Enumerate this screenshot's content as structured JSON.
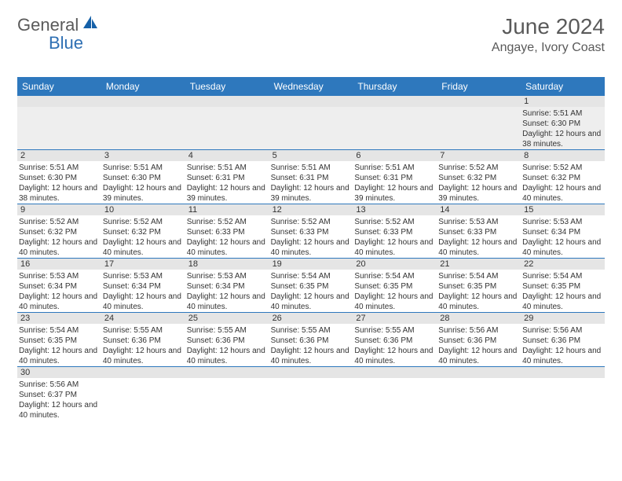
{
  "logo": {
    "part1": "General",
    "part2": "Blue"
  },
  "title": "June 2024",
  "location": "Angaye, Ivory Coast",
  "colors": {
    "header_bg": "#2e78bd",
    "header_text": "#ffffff",
    "daynum_bg": "#e5e5e5",
    "border": "#2e78bd",
    "text": "#333333",
    "logo_gray": "#5a5a5a",
    "logo_blue": "#2e6fb3"
  },
  "dayNames": [
    "Sunday",
    "Monday",
    "Tuesday",
    "Wednesday",
    "Thursday",
    "Friday",
    "Saturday"
  ],
  "weeks": [
    [
      null,
      null,
      null,
      null,
      null,
      null,
      {
        "n": "1",
        "sr": "Sunrise: 5:51 AM",
        "ss": "Sunset: 6:30 PM",
        "dl": "Daylight: 12 hours and 38 minutes."
      }
    ],
    [
      {
        "n": "2",
        "sr": "Sunrise: 5:51 AM",
        "ss": "Sunset: 6:30 PM",
        "dl": "Daylight: 12 hours and 38 minutes."
      },
      {
        "n": "3",
        "sr": "Sunrise: 5:51 AM",
        "ss": "Sunset: 6:30 PM",
        "dl": "Daylight: 12 hours and 39 minutes."
      },
      {
        "n": "4",
        "sr": "Sunrise: 5:51 AM",
        "ss": "Sunset: 6:31 PM",
        "dl": "Daylight: 12 hours and 39 minutes."
      },
      {
        "n": "5",
        "sr": "Sunrise: 5:51 AM",
        "ss": "Sunset: 6:31 PM",
        "dl": "Daylight: 12 hours and 39 minutes."
      },
      {
        "n": "6",
        "sr": "Sunrise: 5:51 AM",
        "ss": "Sunset: 6:31 PM",
        "dl": "Daylight: 12 hours and 39 minutes."
      },
      {
        "n": "7",
        "sr": "Sunrise: 5:52 AM",
        "ss": "Sunset: 6:32 PM",
        "dl": "Daylight: 12 hours and 39 minutes."
      },
      {
        "n": "8",
        "sr": "Sunrise: 5:52 AM",
        "ss": "Sunset: 6:32 PM",
        "dl": "Daylight: 12 hours and 40 minutes."
      }
    ],
    [
      {
        "n": "9",
        "sr": "Sunrise: 5:52 AM",
        "ss": "Sunset: 6:32 PM",
        "dl": "Daylight: 12 hours and 40 minutes."
      },
      {
        "n": "10",
        "sr": "Sunrise: 5:52 AM",
        "ss": "Sunset: 6:32 PM",
        "dl": "Daylight: 12 hours and 40 minutes."
      },
      {
        "n": "11",
        "sr": "Sunrise: 5:52 AM",
        "ss": "Sunset: 6:33 PM",
        "dl": "Daylight: 12 hours and 40 minutes."
      },
      {
        "n": "12",
        "sr": "Sunrise: 5:52 AM",
        "ss": "Sunset: 6:33 PM",
        "dl": "Daylight: 12 hours and 40 minutes."
      },
      {
        "n": "13",
        "sr": "Sunrise: 5:52 AM",
        "ss": "Sunset: 6:33 PM",
        "dl": "Daylight: 12 hours and 40 minutes."
      },
      {
        "n": "14",
        "sr": "Sunrise: 5:53 AM",
        "ss": "Sunset: 6:33 PM",
        "dl": "Daylight: 12 hours and 40 minutes."
      },
      {
        "n": "15",
        "sr": "Sunrise: 5:53 AM",
        "ss": "Sunset: 6:34 PM",
        "dl": "Daylight: 12 hours and 40 minutes."
      }
    ],
    [
      {
        "n": "16",
        "sr": "Sunrise: 5:53 AM",
        "ss": "Sunset: 6:34 PM",
        "dl": "Daylight: 12 hours and 40 minutes."
      },
      {
        "n": "17",
        "sr": "Sunrise: 5:53 AM",
        "ss": "Sunset: 6:34 PM",
        "dl": "Daylight: 12 hours and 40 minutes."
      },
      {
        "n": "18",
        "sr": "Sunrise: 5:53 AM",
        "ss": "Sunset: 6:34 PM",
        "dl": "Daylight: 12 hours and 40 minutes."
      },
      {
        "n": "19",
        "sr": "Sunrise: 5:54 AM",
        "ss": "Sunset: 6:35 PM",
        "dl": "Daylight: 12 hours and 40 minutes."
      },
      {
        "n": "20",
        "sr": "Sunrise: 5:54 AM",
        "ss": "Sunset: 6:35 PM",
        "dl": "Daylight: 12 hours and 40 minutes."
      },
      {
        "n": "21",
        "sr": "Sunrise: 5:54 AM",
        "ss": "Sunset: 6:35 PM",
        "dl": "Daylight: 12 hours and 40 minutes."
      },
      {
        "n": "22",
        "sr": "Sunrise: 5:54 AM",
        "ss": "Sunset: 6:35 PM",
        "dl": "Daylight: 12 hours and 40 minutes."
      }
    ],
    [
      {
        "n": "23",
        "sr": "Sunrise: 5:54 AM",
        "ss": "Sunset: 6:35 PM",
        "dl": "Daylight: 12 hours and 40 minutes."
      },
      {
        "n": "24",
        "sr": "Sunrise: 5:55 AM",
        "ss": "Sunset: 6:36 PM",
        "dl": "Daylight: 12 hours and 40 minutes."
      },
      {
        "n": "25",
        "sr": "Sunrise: 5:55 AM",
        "ss": "Sunset: 6:36 PM",
        "dl": "Daylight: 12 hours and 40 minutes."
      },
      {
        "n": "26",
        "sr": "Sunrise: 5:55 AM",
        "ss": "Sunset: 6:36 PM",
        "dl": "Daylight: 12 hours and 40 minutes."
      },
      {
        "n": "27",
        "sr": "Sunrise: 5:55 AM",
        "ss": "Sunset: 6:36 PM",
        "dl": "Daylight: 12 hours and 40 minutes."
      },
      {
        "n": "28",
        "sr": "Sunrise: 5:56 AM",
        "ss": "Sunset: 6:36 PM",
        "dl": "Daylight: 12 hours and 40 minutes."
      },
      {
        "n": "29",
        "sr": "Sunrise: 5:56 AM",
        "ss": "Sunset: 6:36 PM",
        "dl": "Daylight: 12 hours and 40 minutes."
      }
    ],
    [
      {
        "n": "30",
        "sr": "Sunrise: 5:56 AM",
        "ss": "Sunset: 6:37 PM",
        "dl": "Daylight: 12 hours and 40 minutes."
      },
      null,
      null,
      null,
      null,
      null,
      null
    ]
  ]
}
